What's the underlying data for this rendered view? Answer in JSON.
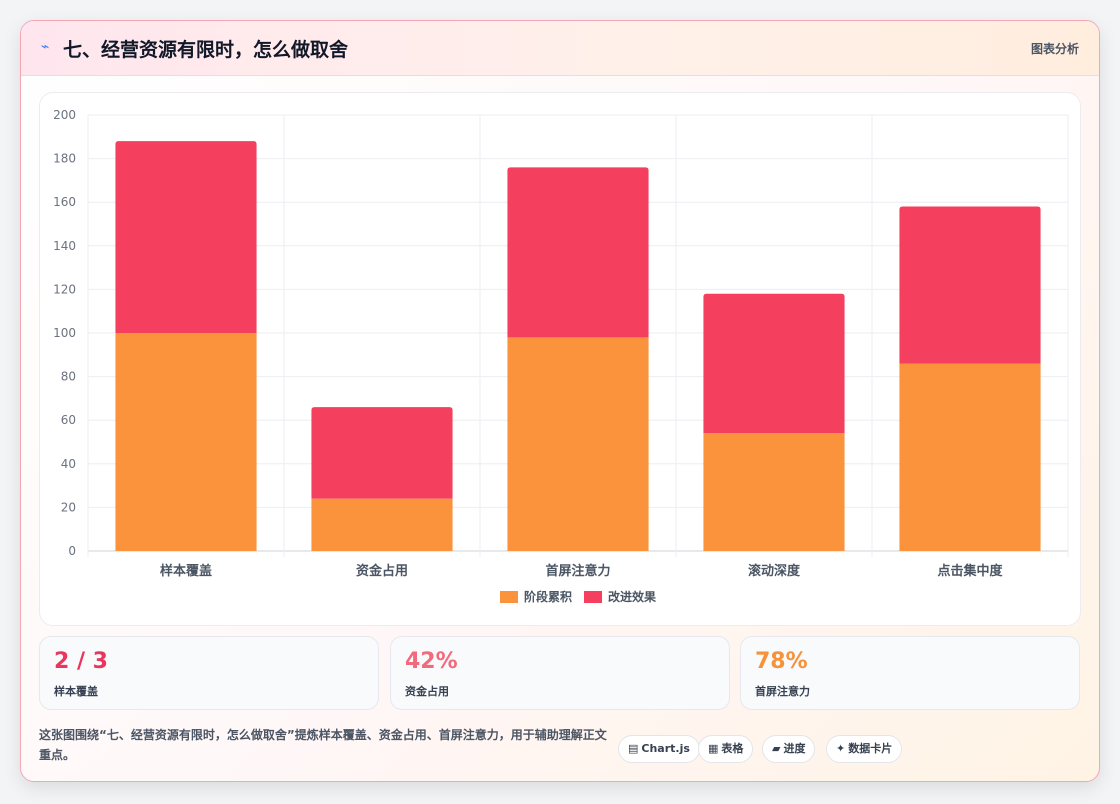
{
  "header": {
    "icon": "lightning-icon",
    "title": "七、经营资源有限时，怎么做取舍",
    "tag": "图表分析"
  },
  "chart_data": {
    "type": "bar",
    "stacked": true,
    "categories": [
      "样本覆盖",
      "资金占用",
      "首屏注意力",
      "滚动深度",
      "点击集中度"
    ],
    "series": [
      {
        "name": "阶段累积",
        "color": "#fb923c",
        "values": [
          100,
          24,
          98,
          54,
          86
        ]
      },
      {
        "name": "改进效果",
        "color": "#f43f5e",
        "values": [
          88,
          42,
          78,
          64,
          72
        ]
      }
    ],
    "ylim": [
      0,
      200
    ],
    "yticks": [
      0,
      20,
      40,
      60,
      80,
      100,
      120,
      140,
      160,
      180,
      200
    ],
    "grid": true,
    "legend": "bottom"
  },
  "kpis": [
    {
      "value": "2 / 3",
      "label": "样本覆盖",
      "color": "#e8365d"
    },
    {
      "value": "42%",
      "label": "资金占用",
      "color": "#f26b7d"
    },
    {
      "value": "78%",
      "label": "首屏注意力",
      "color": "#f6923a"
    }
  ],
  "note": "这张图围绕“七、经营资源有限时，怎么做取舍”提炼样本覆盖、资金占用、首屏注意力，用于辅助理解正文重点。",
  "pills": [
    {
      "icon": "▤",
      "icon_name": "chart-icon",
      "label": "Chart.js"
    },
    {
      "icon": "▦",
      "icon_name": "table-icon",
      "label": "表格"
    },
    {
      "icon": "▰",
      "icon_name": "progress-icon",
      "label": "进度"
    },
    {
      "icon": "✦",
      "icon_name": "sparkle-icon",
      "label": "数据卡片"
    }
  ]
}
